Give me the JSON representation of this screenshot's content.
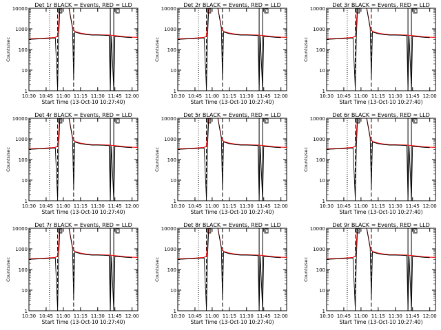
{
  "chart_data": {
    "type": "line",
    "grid": false,
    "xlabel": "Start Time (13-Oct-10 10:27:40)",
    "ylabel": "Counts/sec",
    "yscale": "log",
    "ylim": [
      1,
      10000
    ],
    "yticks": [
      "1",
      "10",
      "100",
      "1000",
      "10000"
    ],
    "xlim": [
      "10:30",
      "12:05"
    ],
    "xticks": [
      "10:30",
      "10:45",
      "11:00",
      "11:15",
      "11:30",
      "11:45",
      "12:00"
    ],
    "legend": "in title: BLACK = Events, RED = LLD",
    "colors": {
      "events": "#000000",
      "lld": "#ff0000"
    },
    "markers": [
      {
        "time": "10:48",
        "style": "dotted"
      },
      {
        "time": "10:55",
        "style": "dashed"
      },
      {
        "time": "11:09",
        "style": "dashed"
      },
      {
        "time": "11:41",
        "style": "solid"
      },
      {
        "time": "11:44",
        "style": "solid"
      }
    ],
    "flags": [
      {
        "time": "10:57",
        "label": "D"
      },
      {
        "time": "11:47",
        "label": "C"
      }
    ],
    "panels": [
      {
        "title": "Det 1r BLACK = Events, RED = LLD"
      },
      {
        "title": "Det 2r BLACK = Events, RED = LLD"
      },
      {
        "title": "Det 3r BLACK = Events, RED = LLD"
      },
      {
        "title": "Det 4r BLACK = Events, RED = LLD"
      },
      {
        "title": "Det 5r BLACK = Events, RED = LLD"
      },
      {
        "title": "Det 6r BLACK = Events, RED = LLD"
      },
      {
        "title": "Det 7r BLACK = Events, RED = LLD"
      },
      {
        "title": "Det 8r BLACK = Events, RED = LLD"
      },
      {
        "title": "Det 9r BLACK = Events, RED = LLD"
      }
    ],
    "series": [
      {
        "name": "LLD",
        "color": "#ff0000",
        "points": [
          [
            "10:30",
            330
          ],
          [
            "10:40",
            345
          ],
          [
            "10:48",
            365
          ],
          [
            "10:53",
            385
          ],
          [
            "10:55",
            450
          ],
          [
            "10:57",
            10000
          ],
          [
            "11:05",
            10000
          ],
          [
            "11:08",
            1200
          ],
          [
            "11:10",
            750
          ],
          [
            "11:15",
            620
          ],
          [
            "11:20",
            560
          ],
          [
            "11:25",
            520
          ],
          [
            "11:30",
            520
          ],
          [
            "11:35",
            510
          ],
          [
            "11:40",
            500
          ],
          [
            "11:45",
            470
          ],
          [
            "11:50",
            440
          ],
          [
            "11:55",
            415
          ],
          [
            "12:00",
            395
          ],
          [
            "12:05",
            385
          ]
        ]
      },
      {
        "name": "Events",
        "color": "#000000",
        "points": [
          [
            "10:30",
            310
          ],
          [
            "10:40",
            330
          ],
          [
            "10:48",
            345
          ],
          [
            "10:53",
            360
          ],
          [
            "10:55",
            1.2
          ],
          [
            "10:56",
            400
          ],
          [
            "10:57",
            10000
          ],
          [
            "11:05",
            10000
          ],
          [
            "11:08",
            1100
          ],
          [
            "11:09",
            4
          ],
          [
            "11:10",
            700
          ],
          [
            "11:15",
            580
          ],
          [
            "11:20",
            530
          ],
          [
            "11:25",
            500
          ],
          [
            "11:30",
            500
          ],
          [
            "11:35",
            490
          ],
          [
            "11:40",
            470
          ],
          [
            "11:41",
            1
          ],
          [
            "11:42",
            450
          ],
          [
            "11:44",
            1
          ],
          [
            "11:45",
            430
          ],
          [
            "11:50",
            410
          ],
          [
            "11:55",
            390
          ],
          [
            "12:00",
            375
          ]
        ]
      }
    ]
  }
}
